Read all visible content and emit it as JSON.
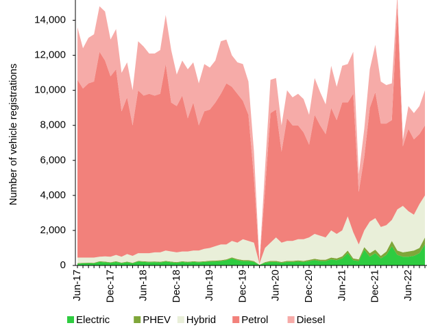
{
  "chart_data": {
    "type": "stacked_area",
    "y_label": "Number of vehicle registrations",
    "categories": [
      "Jun-17",
      null,
      null,
      null,
      null,
      null,
      "Dec-17",
      null,
      null,
      null,
      null,
      null,
      "Jun-18",
      null,
      null,
      null,
      null,
      null,
      "Dec-18",
      null,
      null,
      null,
      null,
      null,
      "Jun-19",
      null,
      null,
      null,
      null,
      null,
      "Dec-19",
      null,
      null,
      null,
      null,
      null,
      "Jun-20",
      null,
      null,
      null,
      null,
      null,
      "Dec-20",
      null,
      null,
      null,
      null,
      null,
      "Jun-21",
      null,
      null,
      null,
      null,
      null,
      "Dec-21",
      null,
      null,
      null,
      null,
      null,
      "Jun-22",
      null,
      null,
      null
    ],
    "series": [
      {
        "name": "Electric",
        "color": "#2ecc40",
        "values": [
          100,
          120,
          130,
          120,
          200,
          180,
          150,
          200,
          130,
          180,
          120,
          220,
          200,
          180,
          190,
          170,
          220,
          180,
          150,
          200,
          170,
          200,
          180,
          200,
          220,
          230,
          250,
          300,
          400,
          300,
          250,
          250,
          200,
          30,
          150,
          200,
          200,
          150,
          200,
          200,
          220,
          200,
          250,
          300,
          250,
          250,
          350,
          300,
          400,
          700,
          300,
          250,
          900,
          500,
          700,
          400,
          600,
          1100,
          600,
          500,
          500,
          550,
          700,
          1200
        ]
      },
      {
        "name": "PHEV",
        "color": "#7fa63a",
        "values": [
          30,
          30,
          30,
          30,
          40,
          40,
          30,
          40,
          30,
          40,
          30,
          40,
          40,
          40,
          40,
          40,
          40,
          40,
          40,
          40,
          40,
          40,
          40,
          40,
          50,
          50,
          50,
          50,
          60,
          60,
          60,
          60,
          50,
          10,
          40,
          60,
          60,
          50,
          60,
          60,
          70,
          60,
          70,
          80,
          80,
          80,
          100,
          100,
          120,
          150,
          100,
          100,
          150,
          200,
          200,
          150,
          200,
          300,
          250,
          250,
          300,
          300,
          300,
          400
        ]
      },
      {
        "name": "Hybrid",
        "color": "#e9efd9",
        "values": [
          320,
          300,
          290,
          300,
          260,
          300,
          320,
          360,
          340,
          430,
          400,
          440,
          460,
          480,
          520,
          540,
          590,
          580,
          560,
          560,
          590,
          610,
          630,
          710,
          730,
          820,
          900,
          850,
          940,
          940,
          1190,
          1090,
          1050,
          60,
          810,
          1040,
          1340,
          1100,
          1140,
          1140,
          1210,
          1240,
          1280,
          1420,
          1370,
          1270,
          1550,
          1400,
          1480,
          1950,
          1500,
          850,
          950,
          1800,
          1800,
          1650,
          1500,
          1200,
          2350,
          2650,
          2300,
          2050,
          2500,
          2400
        ]
      },
      {
        "name": "Petrol",
        "color": "#f2817b",
        "values": [
          10150,
          9650,
          9950,
          10050,
          11700,
          11180,
          10300,
          10600,
          8300,
          8950,
          7450,
          9300,
          9000,
          9100,
          8950,
          9050,
          10650,
          8500,
          8350,
          8900,
          7600,
          8450,
          7150,
          7850,
          7900,
          8200,
          8600,
          9200,
          8800,
          8500,
          7900,
          7200,
          3700,
          50,
          3300,
          7400,
          7300,
          5200,
          7000,
          6600,
          6500,
          6100,
          5300,
          6800,
          6300,
          5900,
          7000,
          6500,
          7300,
          6500,
          7900,
          3000,
          4200,
          6500,
          7200,
          5900,
          5800,
          5700,
          11600,
          3400,
          4700,
          4300,
          4000,
          4000
        ]
      },
      {
        "name": "Diesel",
        "color": "#f6aba8",
        "values": [
          3000,
          2300,
          2600,
          2700,
          2600,
          2800,
          2100,
          2300,
          2200,
          2000,
          2000,
          2800,
          2800,
          2300,
          2400,
          2500,
          2800,
          3000,
          1800,
          2000,
          2800,
          2300,
          2400,
          2700,
          2400,
          2400,
          3000,
          2500,
          1800,
          1800,
          2100,
          1900,
          1500,
          50,
          1200,
          1900,
          1800,
          1500,
          1600,
          1600,
          1800,
          1900,
          1700,
          2100,
          1900,
          1700,
          2400,
          1900,
          2100,
          2200,
          2400,
          1000,
          1600,
          2200,
          2700,
          2400,
          2200,
          2100,
          700,
          400,
          1300,
          1500,
          1600,
          2000
        ]
      }
    ],
    "ylim": [
      0,
      15000
    ],
    "yticks": [
      {
        "value": 0,
        "label": "0"
      },
      {
        "value": 2000,
        "label": "2,000"
      },
      {
        "value": 4000,
        "label": "4,000"
      },
      {
        "value": 6000,
        "label": "6,000"
      },
      {
        "value": 8000,
        "label": "8,000"
      },
      {
        "value": 10000,
        "label": "10,000"
      },
      {
        "value": 12000,
        "label": "12,000"
      },
      {
        "value": 14000,
        "label": "14,000"
      }
    ],
    "grid": false,
    "legend": "bottom"
  }
}
